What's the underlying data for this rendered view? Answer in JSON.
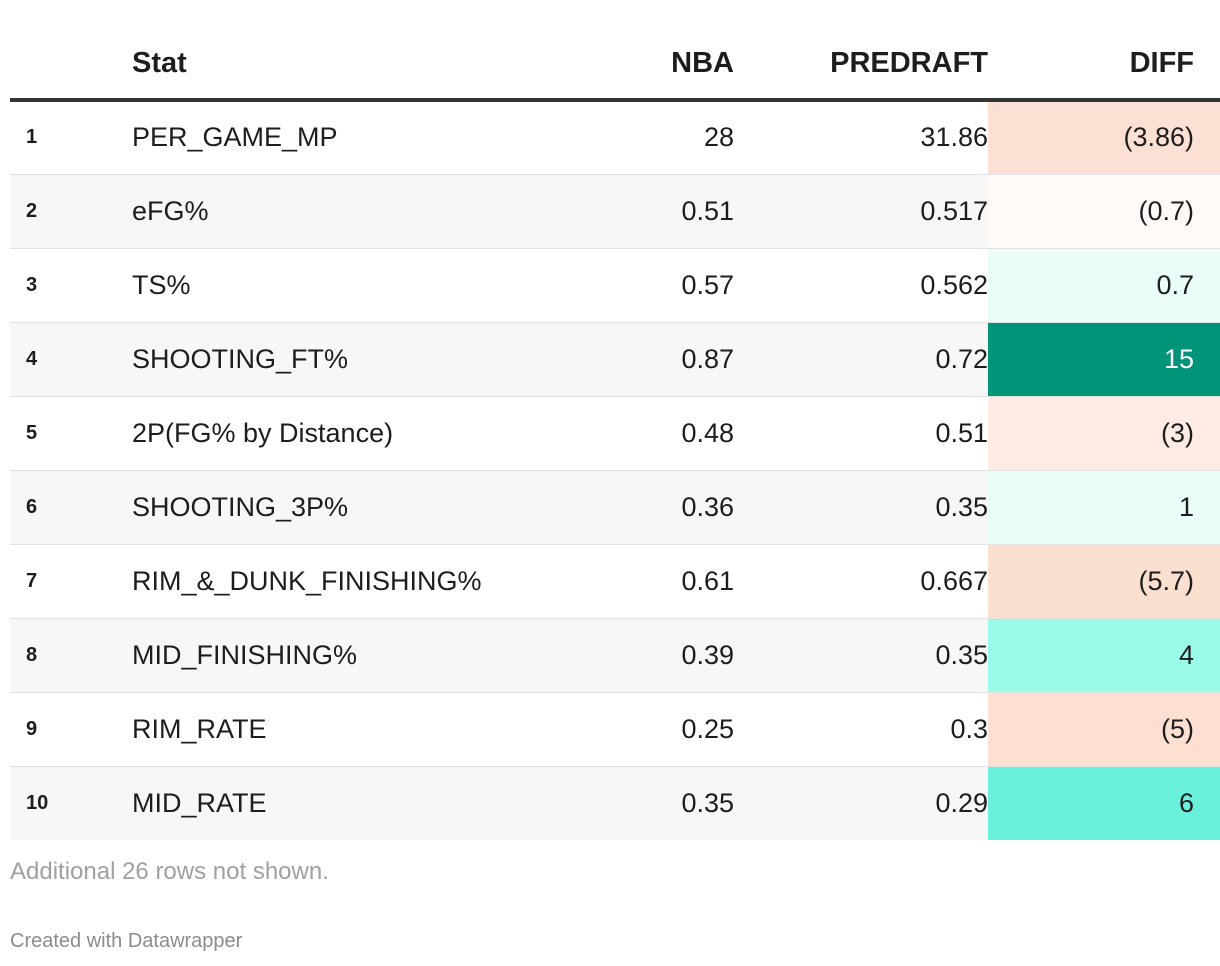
{
  "table": {
    "headers": {
      "index": "",
      "stat": "Stat",
      "nba": "NBA",
      "predraft": "PREDRAFT",
      "diff": "DIFF"
    },
    "rows": [
      {
        "index": "1",
        "stat": "PER_GAME_MP",
        "nba": "28",
        "predraft": "31.86",
        "diff": "(3.86)",
        "diff_bg": "#fce0d3",
        "diff_color": "#1d1d1d"
      },
      {
        "index": "2",
        "stat": "eFG%",
        "nba": "0.51",
        "predraft": "0.517",
        "diff": "(0.7)",
        "diff_bg": "#fffaf8",
        "diff_color": "#1d1d1d"
      },
      {
        "index": "3",
        "stat": "TS%",
        "nba": "0.57",
        "predraft": "0.562",
        "diff": "0.7",
        "diff_bg": "#eafdf9",
        "diff_color": "#1d1d1d"
      },
      {
        "index": "4",
        "stat": "SHOOTING_FT%",
        "nba": "0.87",
        "predraft": "0.72",
        "diff": "15",
        "diff_bg": "#009478",
        "diff_color": "#ffffff"
      },
      {
        "index": "5",
        "stat": "2P(FG% by Distance)",
        "nba": "0.48",
        "predraft": "0.51",
        "diff": "(3)",
        "diff_bg": "#feece4",
        "diff_color": "#1d1d1d"
      },
      {
        "index": "6",
        "stat": "SHOOTING_3P%",
        "nba": "0.36",
        "predraft": "0.35",
        "diff": "1",
        "diff_bg": "#e9fdf9",
        "diff_color": "#1d1d1d"
      },
      {
        "index": "7",
        "stat": "RIM_&_DUNK_FINISHING%",
        "nba": "0.61",
        "predraft": "0.667",
        "diff": "(5.7)",
        "diff_bg": "#fbdfcf",
        "diff_color": "#1d1d1d"
      },
      {
        "index": "8",
        "stat": "MID_FINISHING%",
        "nba": "0.39",
        "predraft": "0.35",
        "diff": "4",
        "diff_bg": "#9bfbea",
        "diff_color": "#1d1d1d"
      },
      {
        "index": "9",
        "stat": "RIM_RATE",
        "nba": "0.25",
        "predraft": "0.3",
        "diff": "(5)",
        "diff_bg": "#fde0d2",
        "diff_color": "#1d1d1d"
      },
      {
        "index": "10",
        "stat": "MID_RATE",
        "nba": "0.35",
        "predraft": "0.29",
        "diff": "6",
        "diff_bg": "#6af1dc",
        "diff_color": "#1d1d1d"
      }
    ]
  },
  "footnote": "Additional 26 rows not shown.",
  "credit": "Created with Datawrapper"
}
